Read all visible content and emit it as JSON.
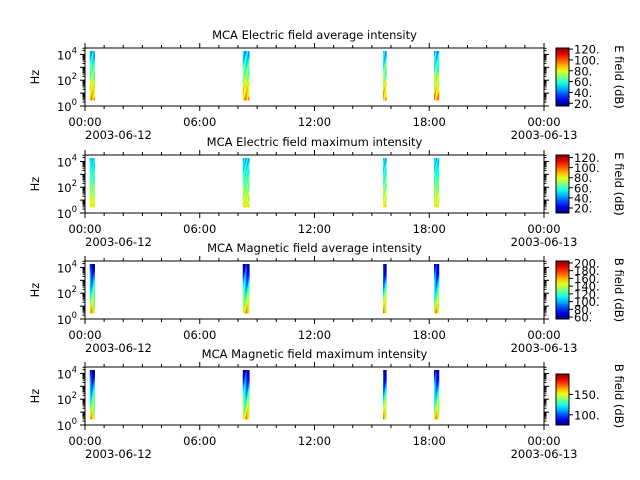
{
  "chart_data": [
    {
      "type": "heatmap",
      "title": "MCA  Electric field average intensity",
      "ylabel": "Hz",
      "y_scale": "log",
      "y_ticks": [
        "10^0",
        "10^2",
        "10^4"
      ],
      "x_ticks": [
        "00:00",
        "06:00",
        "12:00",
        "18:00",
        "00:00"
      ],
      "x_dates": [
        "2003-06-12",
        "2003-06-13"
      ],
      "x_range": [
        "2003-06-12 00:00",
        "2003-06-13 00:00"
      ],
      "colorbar": {
        "label": "E field (dB)",
        "range": [
          15,
          122
        ],
        "ticks": [
          "20.",
          "40.",
          "60.",
          "80.",
          "100.",
          "120."
        ]
      },
      "passes_utc": [
        "00:15-00:30",
        "08:15-08:35",
        "15:35-15:45",
        "18:15-18:30"
      ],
      "profile": "bright-low"
    },
    {
      "type": "heatmap",
      "title": "MCA  Electric field maximum intensity",
      "ylabel": "Hz",
      "y_scale": "log",
      "y_ticks": [
        "10^0",
        "10^2",
        "10^4"
      ],
      "x_ticks": [
        "00:00",
        "06:00",
        "12:00",
        "18:00",
        "00:00"
      ],
      "x_dates": [
        "2003-06-12",
        "2003-06-13"
      ],
      "x_range": [
        "2003-06-12 00:00",
        "2003-06-13 00:00"
      ],
      "colorbar": {
        "label": "E field (dB)",
        "range": [
          10,
          125
        ],
        "ticks": [
          "20.",
          "40.",
          "60.",
          "80.",
          "100.",
          "120."
        ]
      },
      "passes_utc": [
        "00:15-00:30",
        "08:15-08:35",
        "15:35-15:45",
        "18:15-18:30"
      ],
      "profile": "green-mid"
    },
    {
      "type": "heatmap",
      "title": "MCA  Magnetic field average intensity",
      "ylabel": "Hz",
      "y_scale": "log",
      "y_ticks": [
        "10^0",
        "10^2",
        "10^4"
      ],
      "x_ticks": [
        "00:00",
        "06:00",
        "12:00",
        "18:00",
        "00:00"
      ],
      "x_dates": [
        "2003-06-12",
        "2003-06-13"
      ],
      "x_range": [
        "2003-06-12 00:00",
        "2003-06-13 00:00"
      ],
      "colorbar": {
        "label": "B field (dB)",
        "range": [
          55,
          205
        ],
        "ticks": [
          "60.",
          "80.",
          "100.",
          "120.",
          "140.",
          "160.",
          "180.",
          "200."
        ]
      },
      "passes_utc": [
        "00:15-00:30",
        "08:15-08:35",
        "15:35-15:45",
        "18:15-18:30"
      ],
      "profile": "blue-top"
    },
    {
      "type": "heatmap",
      "title": "MCA  Magnetic field maximum intensity",
      "ylabel": "Hz",
      "y_scale": "log",
      "y_ticks": [
        "10^0",
        "10^2",
        "10^4"
      ],
      "x_ticks": [
        "00:00",
        "06:00",
        "12:00",
        "18:00",
        "00:00"
      ],
      "x_dates": [
        "2003-06-12",
        "2003-06-13"
      ],
      "x_range": [
        "2003-06-12 00:00",
        "2003-06-13 00:00"
      ],
      "colorbar": {
        "label": "B field (dB)",
        "range": [
          75,
          200
        ],
        "ticks": [
          "100.",
          "150."
        ]
      },
      "passes_utc": [
        "00:15-00:30",
        "08:15-08:35",
        "15:35-15:45",
        "18:15-18:30"
      ],
      "profile": "blue-top"
    }
  ]
}
